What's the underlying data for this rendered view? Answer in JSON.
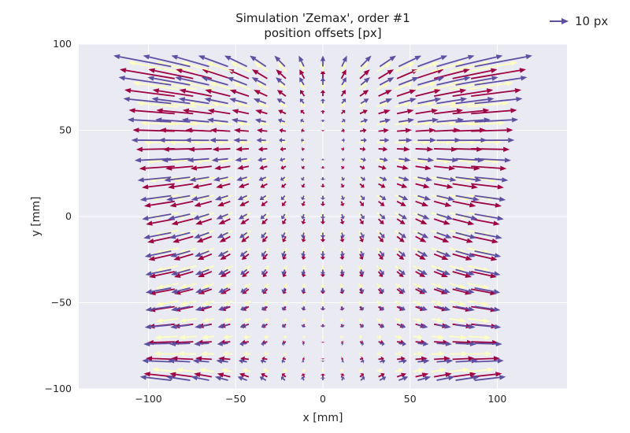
{
  "chart_data": {
    "type": "quiver",
    "title": "Simulation 'Zemax', order #1",
    "subtitle": "position offsets [px]",
    "xlabel": "x [mm]",
    "ylabel": "y [mm]",
    "xlim": [
      -140,
      140
    ],
    "ylim": [
      -100,
      100
    ],
    "xticks": [
      -100,
      -50,
      0,
      50,
      100
    ],
    "yticks": [
      -100,
      -50,
      0,
      50,
      100
    ],
    "xtick_labels": [
      "−100",
      "−50",
      "0",
      "50",
      "100"
    ],
    "ytick_labels": [
      "−100",
      "−50",
      "0",
      "50",
      "100"
    ],
    "grid": true,
    "background": "#eaeaf2",
    "legend": {
      "label": "10 px",
      "placement": "top-right",
      "color": "#5e4fa2",
      "reference_length_px": 10
    },
    "series": [
      {
        "color": "#9e0142",
        "grid": {
          "x_range": [
            -85,
            85
          ],
          "y_range": [
            -93,
            80
          ],
          "nx": 17,
          "ny": 18
        }
      },
      {
        "color": "#ffffbf",
        "grid": {
          "x_range": [
            -83,
            83
          ],
          "y_range": [
            -90,
            84
          ],
          "nx": 17,
          "ny": 18
        }
      },
      {
        "color": "#5e4fa2",
        "grid": {
          "x_range": [
            -87,
            87
          ],
          "y_range": [
            -95,
            87
          ],
          "nx": 17,
          "ny": 18
        }
      }
    ]
  }
}
